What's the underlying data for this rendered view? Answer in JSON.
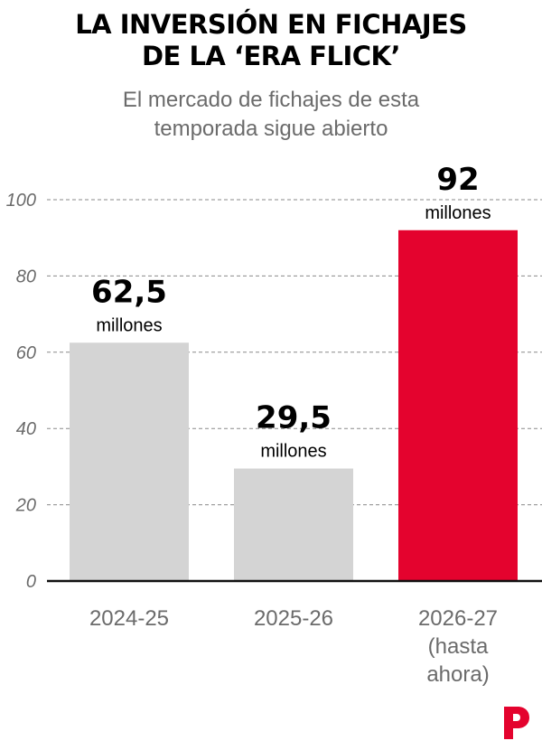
{
  "title_line1": "LA INVERSIÓN EN FICHAJES",
  "title_line2": "DE LA ‘ERA FLICK’",
  "subtitle_line1": "El mercado de fichajes de esta",
  "subtitle_line2": "temporada sigue abierto",
  "chart_data": {
    "type": "bar",
    "categories": [
      [
        "2024-25"
      ],
      [
        "2025-26"
      ],
      [
        "2026-27",
        "(hasta",
        "ahora)"
      ]
    ],
    "values": [
      62.5,
      29.5,
      92
    ],
    "value_labels": [
      "62,5",
      "29,5",
      "92"
    ],
    "unit_label": "millones",
    "y_ticks": [
      0,
      20,
      40,
      60,
      80,
      100
    ],
    "ylim": [
      0,
      100
    ],
    "grid": true,
    "colors": [
      "#d4d4d4",
      "#d4d4d4",
      "#e4032e"
    ]
  },
  "colors": {
    "highlight": "#e4032e",
    "bar_default": "#d4d4d4",
    "tick_text": "#6b6b6b"
  },
  "logo_icon": "publisher-p-icon"
}
